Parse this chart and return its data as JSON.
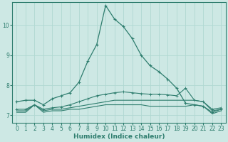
{
  "xlabel": "Humidex (Indice chaleur)",
  "background_color": "#cde8e4",
  "grid_color": "#b0d8d2",
  "line_color": "#2e7d6e",
  "x_ticks": [
    0,
    1,
    2,
    3,
    4,
    5,
    6,
    7,
    8,
    9,
    10,
    11,
    12,
    13,
    14,
    15,
    16,
    17,
    18,
    19,
    20,
    21,
    22,
    23
  ],
  "y_ticks": [
    7,
    8,
    9,
    10
  ],
  "ylim": [
    6.75,
    10.75
  ],
  "xlim": [
    -0.5,
    23.5
  ],
  "series": [
    [
      7.45,
      7.5,
      7.5,
      7.35,
      7.55,
      7.65,
      7.75,
      8.1,
      8.8,
      9.35,
      10.65,
      10.2,
      9.95,
      9.55,
      9.0,
      8.65,
      8.45,
      8.2,
      7.9,
      7.4,
      7.35,
      7.3,
      7.1,
      7.2
    ],
    [
      7.1,
      7.1,
      7.35,
      7.1,
      7.15,
      7.15,
      7.2,
      7.2,
      7.25,
      7.3,
      7.35,
      7.35,
      7.35,
      7.35,
      7.35,
      7.3,
      7.3,
      7.3,
      7.3,
      7.3,
      7.35,
      7.3,
      7.05,
      7.15
    ],
    [
      7.15,
      7.15,
      7.35,
      7.15,
      7.2,
      7.2,
      7.25,
      7.3,
      7.35,
      7.4,
      7.45,
      7.5,
      7.5,
      7.5,
      7.5,
      7.5,
      7.5,
      7.5,
      7.5,
      7.5,
      7.5,
      7.45,
      7.15,
      7.2
    ],
    [
      7.2,
      7.2,
      7.35,
      7.2,
      7.25,
      7.28,
      7.35,
      7.45,
      7.55,
      7.65,
      7.7,
      7.75,
      7.78,
      7.75,
      7.72,
      7.7,
      7.7,
      7.68,
      7.65,
      7.9,
      7.5,
      7.45,
      7.2,
      7.25
    ]
  ]
}
